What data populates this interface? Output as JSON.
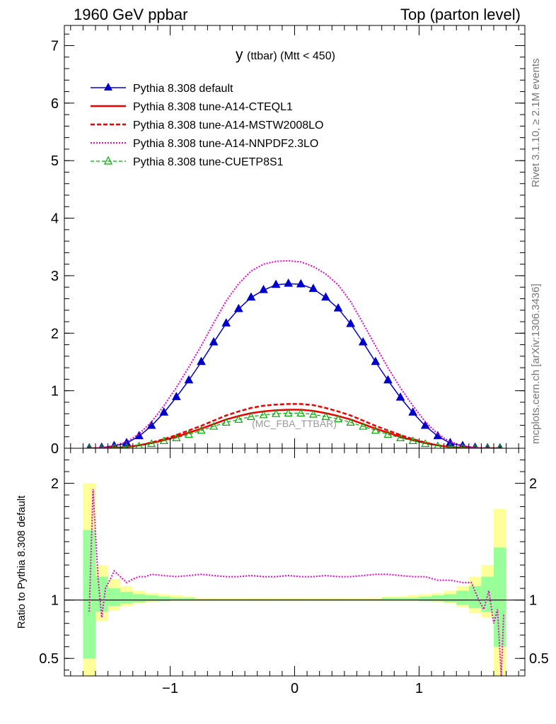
{
  "header": {
    "left": "1960 GeV ppbar",
    "right": "Top (parton level)"
  },
  "side_labels": {
    "rivet": "Rivet 3.1.10, ≥ 2.1M events",
    "source": "mcplots.cern.ch [arXiv:1306.3436]"
  },
  "chart_data": [
    {
      "type": "line",
      "title": "y",
      "title_suffix": "(ttbar) (Mtt < 450)",
      "watermark": "(MC_FBA_TTBAR)",
      "xlim": [
        -1.85,
        1.85
      ],
      "ylim": [
        0,
        7.35
      ],
      "yticks": [
        0,
        1,
        2,
        3,
        4,
        5,
        6,
        7
      ],
      "series": [
        {
          "name": "Pythia 8.308 default",
          "color": "#0000cc",
          "style": "solid-markers-filled-triangle",
          "x": [
            -1.65,
            -1.55,
            -1.45,
            -1.35,
            -1.25,
            -1.15,
            -1.05,
            -0.95,
            -0.85,
            -0.75,
            -0.65,
            -0.55,
            -0.45,
            -0.35,
            -0.25,
            -0.15,
            -0.05,
            0.05,
            0.15,
            0.25,
            0.35,
            0.45,
            0.55,
            0.65,
            0.75,
            0.85,
            0.95,
            1.05,
            1.15,
            1.25,
            1.35,
            1.45,
            1.55,
            1.65
          ],
          "y": [
            0.0,
            0.01,
            0.04,
            0.09,
            0.21,
            0.39,
            0.62,
            0.89,
            1.18,
            1.5,
            1.84,
            2.17,
            2.42,
            2.62,
            2.75,
            2.84,
            2.86,
            2.85,
            2.77,
            2.62,
            2.43,
            2.16,
            1.84,
            1.5,
            1.18,
            0.88,
            0.62,
            0.39,
            0.21,
            0.09,
            0.04,
            0.01,
            0.0,
            0.0
          ]
        },
        {
          "name": "Pythia 8.308 tune-A14-CTEQL1",
          "color": "#ee0000",
          "style": "solid",
          "x": [
            -1.65,
            -1.55,
            -1.45,
            -1.35,
            -1.25,
            -1.15,
            -1.05,
            -0.95,
            -0.85,
            -0.75,
            -0.65,
            -0.55,
            -0.45,
            -0.35,
            -0.25,
            -0.15,
            -0.05,
            0.05,
            0.15,
            0.25,
            0.35,
            0.45,
            0.55,
            0.65,
            0.75,
            0.85,
            0.95,
            1.05,
            1.15,
            1.25,
            1.35,
            1.45,
            1.55,
            1.65
          ],
          "y": [
            0.0,
            0.0,
            0.01,
            0.02,
            0.05,
            0.09,
            0.14,
            0.2,
            0.27,
            0.34,
            0.42,
            0.5,
            0.56,
            0.61,
            0.64,
            0.66,
            0.67,
            0.67,
            0.65,
            0.61,
            0.56,
            0.5,
            0.42,
            0.34,
            0.27,
            0.2,
            0.14,
            0.09,
            0.05,
            0.02,
            0.01,
            0.0,
            0.0,
            0.0
          ]
        },
        {
          "name": "Pythia 8.308 tune-A14-MSTW2008LO",
          "color": "#ee0000",
          "style": "dashed",
          "x": [
            -1.65,
            -1.55,
            -1.45,
            -1.35,
            -1.25,
            -1.15,
            -1.05,
            -0.95,
            -0.85,
            -0.75,
            -0.65,
            -0.55,
            -0.45,
            -0.35,
            -0.25,
            -0.15,
            -0.05,
            0.05,
            0.15,
            0.25,
            0.35,
            0.45,
            0.55,
            0.65,
            0.75,
            0.85,
            0.95,
            1.05,
            1.15,
            1.25,
            1.35,
            1.45,
            1.55,
            1.65
          ],
          "y": [
            0.0,
            0.0,
            0.01,
            0.02,
            0.05,
            0.1,
            0.16,
            0.23,
            0.31,
            0.39,
            0.48,
            0.57,
            0.64,
            0.7,
            0.74,
            0.76,
            0.77,
            0.77,
            0.75,
            0.7,
            0.64,
            0.57,
            0.48,
            0.39,
            0.31,
            0.23,
            0.16,
            0.1,
            0.05,
            0.02,
            0.01,
            0.0,
            0.0,
            0.0
          ]
        },
        {
          "name": "Pythia 8.308 tune-A14-NNPDF2.3LO",
          "color": "#ee00cc",
          "style": "dotted",
          "x": [
            -1.65,
            -1.55,
            -1.45,
            -1.35,
            -1.25,
            -1.15,
            -1.05,
            -0.95,
            -0.85,
            -0.75,
            -0.65,
            -0.55,
            -0.45,
            -0.35,
            -0.25,
            -0.15,
            -0.05,
            0.05,
            0.15,
            0.25,
            0.35,
            0.45,
            0.55,
            0.65,
            0.75,
            0.85,
            0.95,
            1.05,
            1.15,
            1.25,
            1.35,
            1.45,
            1.55,
            1.65
          ],
          "y": [
            0.0,
            0.01,
            0.05,
            0.11,
            0.25,
            0.46,
            0.74,
            1.06,
            1.41,
            1.78,
            2.18,
            2.56,
            2.86,
            3.08,
            3.2,
            3.25,
            3.26,
            3.24,
            3.16,
            3.03,
            2.84,
            2.55,
            2.17,
            1.78,
            1.4,
            1.05,
            0.74,
            0.46,
            0.25,
            0.11,
            0.05,
            0.01,
            0.0,
            0.0
          ]
        },
        {
          "name": "Pythia 8.308 tune-CUETP8S1",
          "color": "#00aa00",
          "style": "dashed-markers-open-triangle",
          "x": [
            -1.65,
            -1.55,
            -1.45,
            -1.35,
            -1.25,
            -1.15,
            -1.05,
            -0.95,
            -0.85,
            -0.75,
            -0.65,
            -0.55,
            -0.45,
            -0.35,
            -0.25,
            -0.15,
            -0.05,
            0.05,
            0.15,
            0.25,
            0.35,
            0.45,
            0.55,
            0.65,
            0.75,
            0.85,
            0.95,
            1.05,
            1.15,
            1.25,
            1.35,
            1.45,
            1.55,
            1.65
          ],
          "y": [
            0.0,
            0.0,
            0.01,
            0.02,
            0.04,
            0.08,
            0.13,
            0.18,
            0.24,
            0.31,
            0.38,
            0.45,
            0.5,
            0.55,
            0.58,
            0.6,
            0.61,
            0.61,
            0.59,
            0.55,
            0.51,
            0.45,
            0.38,
            0.31,
            0.24,
            0.18,
            0.13,
            0.08,
            0.04,
            0.02,
            0.01,
            0.0,
            0.0,
            0.0
          ]
        }
      ]
    },
    {
      "type": "line",
      "ylabel": "Ratio to Pythia 8.308 default",
      "xlim": [
        -1.85,
        1.85
      ],
      "ylim": [
        0.35,
        2.3
      ],
      "yticks": [
        0.5,
        1,
        2
      ],
      "xticks": [
        -1,
        0,
        1
      ],
      "bands": {
        "x_edges": [
          -1.7,
          -1.6,
          -1.5,
          -1.4,
          -1.3,
          -1.2,
          -1.1,
          -1.0,
          -0.9,
          -0.8,
          -0.7,
          -0.6,
          -0.5,
          -0.4,
          -0.3,
          -0.2,
          -0.1,
          0.0,
          0.1,
          0.2,
          0.3,
          0.4,
          0.5,
          0.6,
          0.7,
          0.8,
          0.9,
          1.0,
          1.1,
          1.2,
          1.3,
          1.4,
          1.5,
          1.6,
          1.7
        ],
        "outer_color": "#ffff99",
        "inner_color": "#99ff99",
        "outer_up": [
          2.0,
          1.3,
          1.18,
          1.12,
          1.08,
          1.06,
          1.05,
          1.04,
          1.03,
          1.02,
          1.02,
          1.02,
          1.02,
          1.02,
          1.02,
          1.02,
          1.02,
          1.02,
          1.02,
          1.02,
          1.02,
          1.02,
          1.02,
          1.02,
          1.03,
          1.03,
          1.04,
          1.05,
          1.06,
          1.08,
          1.12,
          1.2,
          1.3,
          1.78
        ],
        "outer_down": [
          0.35,
          0.82,
          0.91,
          0.95,
          0.97,
          0.98,
          0.99,
          0.99,
          0.99,
          0.99,
          0.99,
          0.99,
          0.99,
          0.99,
          0.99,
          0.99,
          0.99,
          0.99,
          0.99,
          0.99,
          0.99,
          0.99,
          0.99,
          0.99,
          0.99,
          0.99,
          0.99,
          0.99,
          0.98,
          0.97,
          0.94,
          0.89,
          0.85,
          0.35
        ],
        "inner_up": [
          1.6,
          1.2,
          1.1,
          1.07,
          1.05,
          1.04,
          1.03,
          1.02,
          1.02,
          1.01,
          1.01,
          1.01,
          1.01,
          1.01,
          1.01,
          1.01,
          1.01,
          1.01,
          1.01,
          1.01,
          1.01,
          1.01,
          1.01,
          1.01,
          1.02,
          1.02,
          1.02,
          1.03,
          1.04,
          1.05,
          1.08,
          1.12,
          1.2,
          1.45
        ],
        "inner_down": [
          0.5,
          0.9,
          0.95,
          0.97,
          0.98,
          0.99,
          0.99,
          1.0,
          1.0,
          1.0,
          1.0,
          1.0,
          1.0,
          1.0,
          1.0,
          1.0,
          1.0,
          1.0,
          1.0,
          1.0,
          1.0,
          1.0,
          1.0,
          1.0,
          1.0,
          1.0,
          1.0,
          0.99,
          0.99,
          0.98,
          0.96,
          0.93,
          0.9,
          0.6
        ]
      },
      "reference_line": 1,
      "ratio_series": [
        {
          "name": "Pythia 8.308 tune-A14-NNPDF2.3LO",
          "color": "#ee00cc",
          "x": [
            -1.65,
            -1.62,
            -1.58,
            -1.55,
            -1.52,
            -1.48,
            -1.45,
            -1.4,
            -1.35,
            -1.3,
            -1.25,
            -1.2,
            -1.15,
            -1.05,
            -0.95,
            -0.85,
            -0.75,
            -0.65,
            -0.55,
            -0.45,
            -0.35,
            -0.25,
            -0.15,
            -0.05,
            0.05,
            0.15,
            0.25,
            0.35,
            0.45,
            0.55,
            0.65,
            0.75,
            0.85,
            0.95,
            1.05,
            1.15,
            1.25,
            1.35,
            1.42,
            1.48,
            1.52,
            1.56,
            1.6,
            1.63,
            1.66,
            1.68
          ],
          "y": [
            0.9,
            1.95,
            1.2,
            0.85,
            1.1,
            1.18,
            1.25,
            1.2,
            1.15,
            1.18,
            1.2,
            1.2,
            1.22,
            1.21,
            1.2,
            1.21,
            1.22,
            1.21,
            1.2,
            1.2,
            1.21,
            1.2,
            1.2,
            1.21,
            1.2,
            1.2,
            1.21,
            1.2,
            1.2,
            1.21,
            1.22,
            1.22,
            1.21,
            1.2,
            1.2,
            1.17,
            1.17,
            1.15,
            1.15,
            1.0,
            0.92,
            1.08,
            0.8,
            0.92,
            0.35,
            0.88
          ]
        }
      ]
    }
  ]
}
